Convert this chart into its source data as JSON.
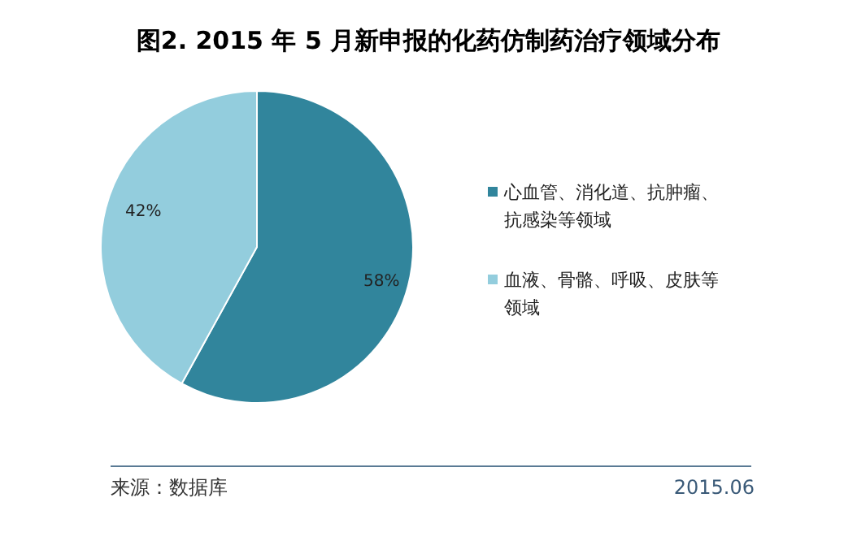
{
  "chart_data": {
    "type": "pie",
    "title": "图2. 2015 年 5 月新申报的化药仿制药治疗领域分布",
    "categories": [
      "心血管、消化道、抗肿瘤、抗感染等领域",
      "血液、骨骼、呼吸、皮肤等领域"
    ],
    "values": [
      58,
      42
    ],
    "colors": [
      "#31859c",
      "#93cddd"
    ],
    "value_labels": [
      "58%",
      "42%"
    ],
    "legend": "right",
    "annotations": [
      "来源：数据库",
      "2015.06"
    ]
  }
}
